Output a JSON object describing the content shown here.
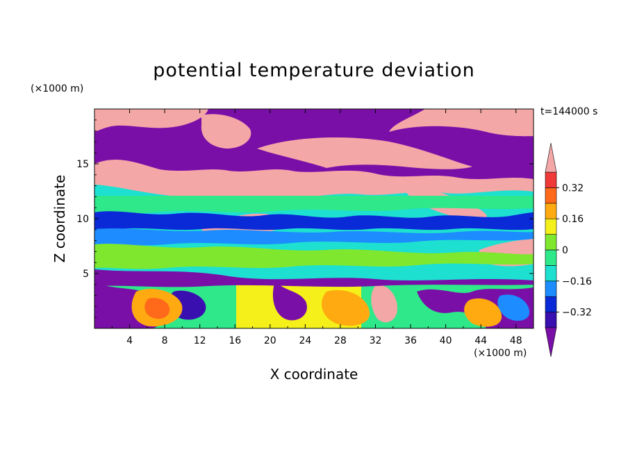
{
  "chart_data": {
    "type": "heatmap",
    "title": "potential temperature deviation",
    "xlabel": "X coordinate",
    "ylabel": "Z coordinate",
    "x_unit_label": "(×1000 m)",
    "y_unit_label": "(×1000 m)",
    "time_label": "t=144000 s",
    "xlim": [
      0,
      50
    ],
    "ylim": [
      0,
      20
    ],
    "x_ticks": [
      4,
      8,
      12,
      16,
      20,
      24,
      28,
      32,
      36,
      40,
      44,
      48
    ],
    "y_ticks": [
      5,
      10,
      15
    ],
    "colorbar": {
      "levels": [
        -0.4,
        -0.32,
        -0.24,
        -0.16,
        -0.08,
        0,
        0.08,
        0.16,
        0.24,
        0.32,
        0.4
      ],
      "labels": [
        "0.32",
        "0.16",
        "0",
        "−0.16",
        "−0.32"
      ],
      "label_values": [
        0.32,
        0.16,
        0,
        -0.16,
        -0.32
      ],
      "colors": [
        "#7a0fa8",
        "#3a0fb0",
        "#0a2ad8",
        "#1c8cff",
        "#1de0d0",
        "#2ee88a",
        "#7fe82e",
        "#f5f01a",
        "#ffaa10",
        "#ff6a1a",
        "#f03a3a",
        "#f4a7a7"
      ],
      "extend": "both"
    },
    "field_description_layers": [
      {
        "z_range": [
          15.5,
          20
        ],
        "dominant": "#7a0fa8"
      },
      {
        "z_range": [
          12.5,
          15.5
        ],
        "dominant": "#f4a7a7"
      },
      {
        "z_range": [
          5,
          12.5
        ],
        "dominant": "#1de0d0"
      },
      {
        "z_range": [
          0,
          5
        ],
        "dominant": "#f5f01a"
      }
    ]
  }
}
